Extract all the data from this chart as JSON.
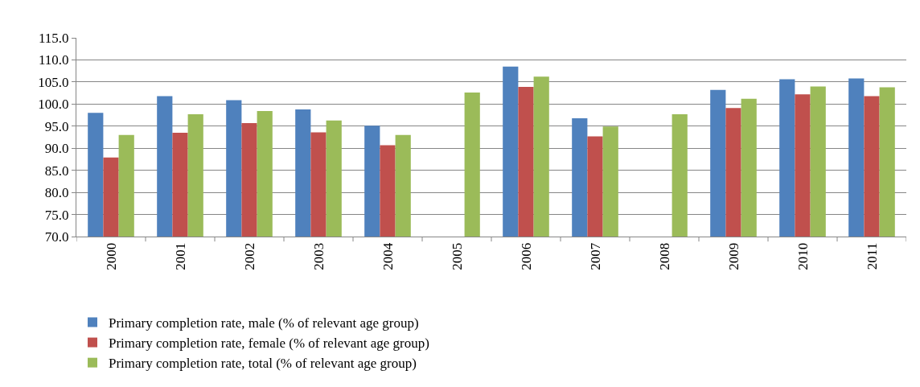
{
  "chart_data": {
    "type": "bar",
    "categories": [
      "2000",
      "2001",
      "2002",
      "2003",
      "2004",
      "2005",
      "2006",
      "2007",
      "2008",
      "2009",
      "2010",
      "2011"
    ],
    "series": [
      {
        "name": "Primary completion rate, male (% of relevant age group)",
        "color": "#4f81bd",
        "values": [
          98.0,
          101.8,
          100.9,
          98.8,
          95.1,
          null,
          108.5,
          96.8,
          null,
          103.2,
          105.6,
          105.8
        ]
      },
      {
        "name": "Primary completion rate, female (% of relevant age group)",
        "color": "#c0504d",
        "values": [
          87.9,
          93.5,
          95.7,
          93.6,
          90.7,
          null,
          103.9,
          92.7,
          null,
          99.1,
          102.2,
          101.8
        ]
      },
      {
        "name": "Primary completion rate, total (% of relevant age group)",
        "color": "#9bbb59",
        "values": [
          93.0,
          97.7,
          98.4,
          96.3,
          93.0,
          102.6,
          106.2,
          94.9,
          97.7,
          101.2,
          104.0,
          103.8
        ]
      }
    ],
    "ylim": [
      70,
      115
    ],
    "yticks": [
      {
        "value": 70,
        "label": "70.0"
      },
      {
        "value": 75,
        "label": "75.0"
      },
      {
        "value": 80,
        "label": "80.0"
      },
      {
        "value": 85,
        "label": "85.0"
      },
      {
        "value": 90,
        "label": "90.0"
      },
      {
        "value": 95,
        "label": "95.0"
      },
      {
        "value": 100,
        "label": "100.0"
      },
      {
        "value": 105,
        "label": "105.0"
      },
      {
        "value": 110,
        "label": "110.0"
      },
      {
        "value": 115,
        "label": "115.0"
      }
    ],
    "grid": "y",
    "legend": "bottom"
  }
}
